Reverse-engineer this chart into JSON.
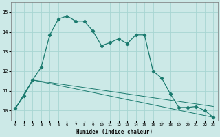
{
  "xlabel": "Humidex (Indice chaleur)",
  "xlim": [
    -0.5,
    23.5
  ],
  "ylim": [
    9.5,
    15.5
  ],
  "yticks": [
    10,
    11,
    12,
    13,
    14,
    15
  ],
  "xticks": [
    0,
    1,
    2,
    3,
    4,
    5,
    6,
    7,
    8,
    9,
    10,
    11,
    12,
    13,
    14,
    15,
    16,
    17,
    18,
    19,
    20,
    21,
    22,
    23
  ],
  "bg_color": "#cce9e7",
  "grid_color": "#a8d5d2",
  "line_color": "#1a7a6e",
  "line1_x": [
    0,
    1,
    2,
    3,
    4,
    5,
    6,
    7,
    8,
    9,
    10,
    11,
    12,
    13,
    14,
    15,
    16,
    17,
    18,
    19,
    20,
    21,
    22,
    23
  ],
  "line1_y": [
    10.1,
    10.75,
    11.55,
    12.2,
    13.85,
    14.65,
    14.8,
    14.55,
    14.55,
    14.05,
    13.3,
    13.45,
    13.65,
    13.4,
    13.85,
    13.85,
    12.0,
    11.65,
    10.85,
    10.15,
    10.15,
    10.2,
    10.0,
    9.65
  ],
  "line2_x": [
    0,
    2,
    23
  ],
  "line2_y": [
    10.1,
    11.55,
    10.2
  ],
  "line3_x": [
    0,
    2,
    23
  ],
  "line3_y": [
    10.1,
    11.55,
    9.65
  ]
}
